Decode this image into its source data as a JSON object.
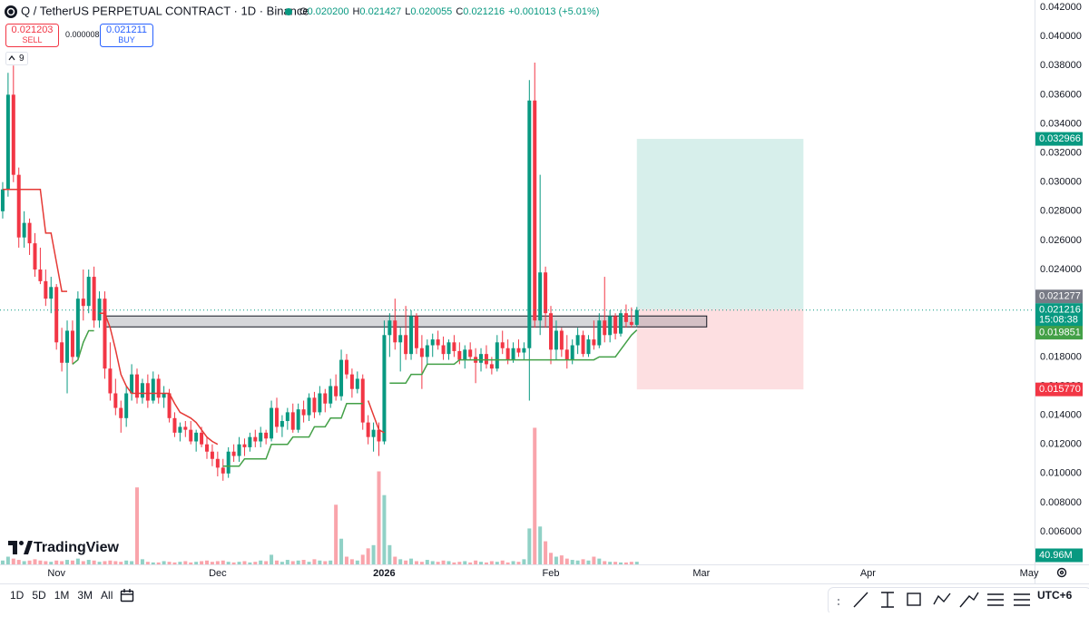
{
  "header": {
    "symbol_title": "Q / TetherUS PERPETUAL CONTRACT · 1D · Binance",
    "ohlc": [
      {
        "label": "O",
        "value": "0.020200"
      },
      {
        "label": "H",
        "value": "0.021427"
      },
      {
        "label": "L",
        "value": "0.020055"
      },
      {
        "label": "C",
        "value": "0.021216"
      }
    ],
    "change": "+0.001013 (+5.01%)",
    "sell": {
      "price": "0.021203",
      "label": "SELL"
    },
    "spread": "0.000008",
    "buy": {
      "price": "0.021211",
      "label": "BUY"
    },
    "indicators_count": 9,
    "logo": "TradingView"
  },
  "chart_data": {
    "type": "candlestick",
    "up_color": "#089981",
    "down_color": "#f23645",
    "grid": false,
    "xlim": [
      -0.5,
      192
    ],
    "xticks": [
      {
        "value": 10,
        "label": "Nov"
      },
      {
        "value": 40,
        "label": "Dec"
      },
      {
        "value": 71,
        "label": "2026",
        "bold": true
      },
      {
        "value": 102,
        "label": "Feb"
      },
      {
        "value": 130,
        "label": "Mar"
      },
      {
        "value": 161,
        "label": "Apr"
      },
      {
        "value": 191,
        "label": "May"
      }
    ],
    "ylim": [
      0.00376,
      0.0425
    ],
    "yticks": [
      {
        "value": 0.042,
        "label": "0.042000"
      },
      {
        "value": 0.04,
        "label": "0.040000"
      },
      {
        "value": 0.038,
        "label": "0.038000"
      },
      {
        "value": 0.036,
        "label": "0.036000"
      },
      {
        "value": 0.034,
        "label": "0.034000"
      },
      {
        "value": 0.032,
        "label": "0.032000"
      },
      {
        "value": 0.03,
        "label": "0.030000"
      },
      {
        "value": 0.028,
        "label": "0.028000"
      },
      {
        "value": 0.026,
        "label": "0.026000"
      },
      {
        "value": 0.024,
        "label": "0.024000"
      },
      {
        "value": 0.022,
        "label": "0.022000"
      },
      {
        "value": 0.02,
        "label": "0.020000"
      },
      {
        "value": 0.018,
        "label": "0.018000"
      },
      {
        "value": 0.016,
        "label": "0.016000"
      },
      {
        "value": 0.014,
        "label": "0.014000"
      },
      {
        "value": 0.012,
        "label": "0.012000"
      },
      {
        "value": 0.01,
        "label": "0.010000"
      },
      {
        "value": 0.008,
        "label": "0.008000"
      },
      {
        "value": 0.006,
        "label": "0.006000"
      }
    ],
    "open": [
      0.028,
      0.0295,
      0.036,
      0.0305,
      0.0262,
      0.0272,
      0.0258,
      0.024,
      0.0232,
      0.022,
      0.0228,
      0.019,
      0.0176,
      0.0198,
      0.018,
      0.022,
      0.0215,
      0.0235,
      0.0205,
      0.022,
      0.0172,
      0.0155,
      0.0145,
      0.0138,
      0.0155,
      0.0168,
      0.0152,
      0.0162,
      0.015,
      0.0165,
      0.0152,
      0.0155,
      0.0138,
      0.0128,
      0.0132,
      0.013,
      0.0122,
      0.0128,
      0.012,
      0.0115,
      0.011,
      0.0104,
      0.01,
      0.0115,
      0.0112,
      0.012,
      0.0118,
      0.0125,
      0.0122,
      0.0128,
      0.0124,
      0.0145,
      0.0132,
      0.0136,
      0.0142,
      0.013,
      0.0144,
      0.014,
      0.0152,
      0.0142,
      0.0155,
      0.0148,
      0.016,
      0.0153,
      0.0178,
      0.0168,
      0.0158,
      0.0165,
      0.0135,
      0.0125,
      0.013,
      0.0122,
      0.0195,
      0.0205,
      0.019,
      0.0195,
      0.0182,
      0.0208,
      0.0186,
      0.018,
      0.0188,
      0.0192,
      0.0188,
      0.0182,
      0.019,
      0.0184,
      0.0178,
      0.0185,
      0.018,
      0.0176,
      0.0182,
      0.0175,
      0.0172,
      0.019,
      0.0186,
      0.0178,
      0.0186,
      0.0183,
      0.0186,
      0.0356,
      0.0205,
      0.0238,
      0.021,
      0.0185,
      0.0198,
      0.0185,
      0.0178,
      0.0188,
      0.0195,
      0.0182,
      0.0192,
      0.0188,
      0.0205,
      0.0195,
      0.0208,
      0.0196,
      0.021,
      0.0204,
      0.0202
    ],
    "high": [
      0.03,
      0.0375,
      0.038,
      0.031,
      0.028,
      0.0275,
      0.0265,
      0.0255,
      0.024,
      0.0235,
      0.023,
      0.02,
      0.0205,
      0.0205,
      0.0225,
      0.024,
      0.024,
      0.0242,
      0.0225,
      0.0225,
      0.019,
      0.0165,
      0.015,
      0.016,
      0.0175,
      0.0172,
      0.0165,
      0.0168,
      0.017,
      0.0168,
      0.016,
      0.0158,
      0.0142,
      0.0135,
      0.0136,
      0.0136,
      0.013,
      0.0132,
      0.0125,
      0.012,
      0.0115,
      0.011,
      0.0118,
      0.012,
      0.0125,
      0.0124,
      0.0128,
      0.013,
      0.0132,
      0.013,
      0.015,
      0.0152,
      0.014,
      0.0145,
      0.0148,
      0.0148,
      0.015,
      0.0155,
      0.0156,
      0.016,
      0.0158,
      0.0165,
      0.0168,
      0.0185,
      0.0182,
      0.0172,
      0.017,
      0.0168,
      0.014,
      0.0135,
      0.0135,
      0.0205,
      0.021,
      0.022,
      0.02,
      0.0215,
      0.0212,
      0.021,
      0.0195,
      0.0192,
      0.0196,
      0.0198,
      0.0194,
      0.0192,
      0.0195,
      0.019,
      0.0188,
      0.019,
      0.0186,
      0.0186,
      0.0188,
      0.018,
      0.0195,
      0.0198,
      0.0192,
      0.019,
      0.0192,
      0.019,
      0.037,
      0.0382,
      0.0305,
      0.0242,
      0.0215,
      0.0205,
      0.02,
      0.0195,
      0.0192,
      0.02,
      0.0198,
      0.0195,
      0.0205,
      0.021,
      0.0235,
      0.0212,
      0.021,
      0.0212,
      0.0216,
      0.0214,
      0.021427
    ],
    "low": [
      0.0275,
      0.029,
      0.03,
      0.0255,
      0.0255,
      0.025,
      0.0235,
      0.023,
      0.0215,
      0.021,
      0.0185,
      0.017,
      0.0155,
      0.0175,
      0.0178,
      0.0205,
      0.021,
      0.02,
      0.02,
      0.0165,
      0.015,
      0.014,
      0.0128,
      0.0132,
      0.015,
      0.0148,
      0.0148,
      0.0145,
      0.0148,
      0.0148,
      0.0145,
      0.0135,
      0.0125,
      0.0122,
      0.0125,
      0.012,
      0.0115,
      0.0118,
      0.011,
      0.0105,
      0.0098,
      0.0095,
      0.0097,
      0.0108,
      0.0108,
      0.0112,
      0.0115,
      0.0118,
      0.0118,
      0.012,
      0.0122,
      0.0128,
      0.0125,
      0.013,
      0.0128,
      0.0128,
      0.0135,
      0.0136,
      0.0138,
      0.014,
      0.0142,
      0.0145,
      0.015,
      0.015,
      0.0165,
      0.0152,
      0.0155,
      0.013,
      0.012,
      0.0115,
      0.0112,
      0.012,
      0.018,
      0.0185,
      0.017,
      0.0178,
      0.0178,
      0.0182,
      0.0158,
      0.0175,
      0.018,
      0.0185,
      0.0178,
      0.0178,
      0.018,
      0.0175,
      0.0172,
      0.0178,
      0.0162,
      0.017,
      0.0172,
      0.0168,
      0.017,
      0.0182,
      0.0175,
      0.0176,
      0.018,
      0.0178,
      0.015,
      0.02,
      0.0195,
      0.02,
      0.0175,
      0.0178,
      0.018,
      0.0172,
      0.0175,
      0.0182,
      0.018,
      0.018,
      0.0185,
      0.0186,
      0.019,
      0.019,
      0.0192,
      0.0194,
      0.02,
      0.02,
      0.020055
    ],
    "close": [
      0.0295,
      0.036,
      0.0305,
      0.0262,
      0.0272,
      0.0258,
      0.024,
      0.0232,
      0.022,
      0.0228,
      0.019,
      0.0176,
      0.0198,
      0.018,
      0.022,
      0.0215,
      0.0235,
      0.0205,
      0.022,
      0.0172,
      0.0155,
      0.0145,
      0.0138,
      0.0155,
      0.0168,
      0.0152,
      0.0162,
      0.015,
      0.0165,
      0.0152,
      0.0155,
      0.0138,
      0.0128,
      0.0132,
      0.013,
      0.0122,
      0.0128,
      0.012,
      0.0115,
      0.011,
      0.0104,
      0.01,
      0.0115,
      0.0112,
      0.012,
      0.0118,
      0.0125,
      0.0122,
      0.0128,
      0.0124,
      0.0145,
      0.0132,
      0.0136,
      0.0142,
      0.013,
      0.0144,
      0.014,
      0.0152,
      0.0142,
      0.0155,
      0.0148,
      0.016,
      0.0153,
      0.0178,
      0.0168,
      0.0158,
      0.0165,
      0.0135,
      0.0125,
      0.013,
      0.0122,
      0.0195,
      0.0205,
      0.019,
      0.0195,
      0.0182,
      0.0208,
      0.0186,
      0.018,
      0.0188,
      0.0192,
      0.0188,
      0.0182,
      0.019,
      0.0184,
      0.0178,
      0.0185,
      0.018,
      0.0176,
      0.0182,
      0.0175,
      0.0172,
      0.019,
      0.0186,
      0.0178,
      0.0186,
      0.0183,
      0.0186,
      0.0356,
      0.0205,
      0.0238,
      0.021,
      0.0185,
      0.0198,
      0.0185,
      0.0178,
      0.0188,
      0.0195,
      0.0182,
      0.0192,
      0.0188,
      0.0205,
      0.0195,
      0.0208,
      0.0196,
      0.021,
      0.0204,
      0.0202,
      0.021216
    ],
    "volume": {
      "ylim": [
        0,
        8800
      ],
      "values": [
        60,
        120,
        90,
        70,
        50,
        60,
        80,
        60,
        50,
        40,
        60,
        50,
        70,
        60,
        90,
        50,
        70,
        60,
        40,
        50,
        60,
        50,
        40,
        60,
        50,
        1200,
        80,
        40,
        30,
        30,
        50,
        40,
        30,
        40,
        50,
        30,
        40,
        50,
        60,
        40,
        50,
        60,
        40,
        30,
        40,
        50,
        30,
        40,
        60,
        50,
        150,
        60,
        40,
        70,
        50,
        60,
        70,
        40,
        80,
        60,
        50,
        60,
        930,
        400,
        120,
        80,
        60,
        150,
        250,
        300,
        1450,
        1080,
        300,
        120,
        80,
        60,
        90,
        50,
        40,
        70,
        50,
        40,
        60,
        50,
        30,
        40,
        50,
        30,
        60,
        40,
        30,
        50,
        40,
        60,
        30,
        50,
        40,
        80,
        560,
        2130,
        590,
        360,
        180,
        120,
        140,
        90,
        70,
        60,
        80,
        60,
        120,
        90,
        50,
        40,
        40,
        30,
        30,
        40,
        40.96
      ],
      "last_label": "40.96M"
    },
    "supertrend_down": {
      "color": "#e53935",
      "values": [
        0.0295,
        0.0295,
        0.0295,
        0.0295,
        0.0295,
        0.0295,
        0.0295,
        0.0295,
        0.0265,
        0.0265,
        0.0245,
        0.0225,
        0.0225,
        null,
        null,
        null,
        null,
        null,
        0.021,
        0.021,
        0.02,
        0.0185,
        0.0168,
        0.016,
        0.0155,
        0.0155,
        0.0155,
        0.0155,
        0.0155,
        0.0155,
        0.0155,
        0.0155,
        0.0148,
        0.0142,
        0.014,
        0.0138,
        0.0135,
        0.013,
        0.0125,
        0.0122,
        0.012,
        null,
        null,
        null,
        null,
        null,
        null,
        null,
        null,
        null,
        null,
        null,
        null,
        null,
        null,
        null,
        null,
        null,
        null,
        null,
        null,
        null,
        null,
        null,
        null,
        null,
        null,
        null,
        0.015,
        0.014,
        0.013,
        0.0128,
        null,
        null,
        null,
        null,
        null,
        null,
        null,
        null,
        null,
        null,
        null,
        null,
        null,
        null,
        null,
        null,
        null,
        null,
        null,
        null,
        null,
        null,
        null,
        null,
        null,
        null,
        null,
        null,
        null,
        null,
        null,
        null,
        null,
        null,
        null,
        null,
        null,
        null,
        null,
        null,
        null,
        null,
        null,
        null,
        null,
        null,
        null
      ]
    },
    "supertrend_up": {
      "color": "#43a047",
      "values": [
        null,
        null,
        null,
        null,
        null,
        null,
        null,
        null,
        null,
        null,
        null,
        null,
        null,
        0.0175,
        0.0178,
        0.019,
        0.0198,
        0.0198,
        null,
        null,
        null,
        null,
        null,
        null,
        null,
        null,
        null,
        null,
        null,
        null,
        null,
        null,
        null,
        null,
        null,
        null,
        null,
        null,
        null,
        null,
        null,
        0.0105,
        0.0105,
        0.0105,
        0.0105,
        0.011,
        0.011,
        0.011,
        0.011,
        0.011,
        0.012,
        0.012,
        0.012,
        0.012,
        0.0125,
        0.0125,
        0.0125,
        0.0125,
        0.0132,
        0.0132,
        0.0132,
        0.0138,
        0.0138,
        0.0138,
        0.0148,
        0.0148,
        0.0148,
        0.0148,
        null,
        null,
        null,
        null,
        0.0162,
        0.0162,
        0.0162,
        0.0162,
        0.0168,
        0.0168,
        0.0168,
        0.0175,
        0.0175,
        0.0175,
        0.0175,
        0.0175,
        0.0175,
        0.0178,
        0.0178,
        0.0178,
        0.0178,
        0.0178,
        0.0178,
        0.0178,
        0.0178,
        0.0178,
        0.0178,
        0.0178,
        0.0178,
        0.0178,
        0.0178,
        0.0178,
        0.0178,
        0.0178,
        0.0178,
        0.0178,
        0.0178,
        0.0178,
        0.0178,
        0.0178,
        0.0178,
        0.0178,
        0.0178,
        0.018,
        0.018,
        0.018,
        0.018,
        0.0185,
        0.019,
        0.0195,
        0.019851
      ]
    },
    "zone": {
      "x": [
        19,
        131
      ],
      "y": [
        0.02006,
        0.02081
      ]
    },
    "position": {
      "x": [
        118,
        149
      ],
      "entry": 0.021277,
      "target": 0.032966,
      "stop": {
        "value": 0.01577,
        "label": "0.015770"
      }
    },
    "countdown": "15:08:38"
  },
  "toolbar": {
    "ranges": [
      "1D",
      "5D",
      "1M",
      "3M",
      "All"
    ],
    "timezone": "UTC+6"
  }
}
